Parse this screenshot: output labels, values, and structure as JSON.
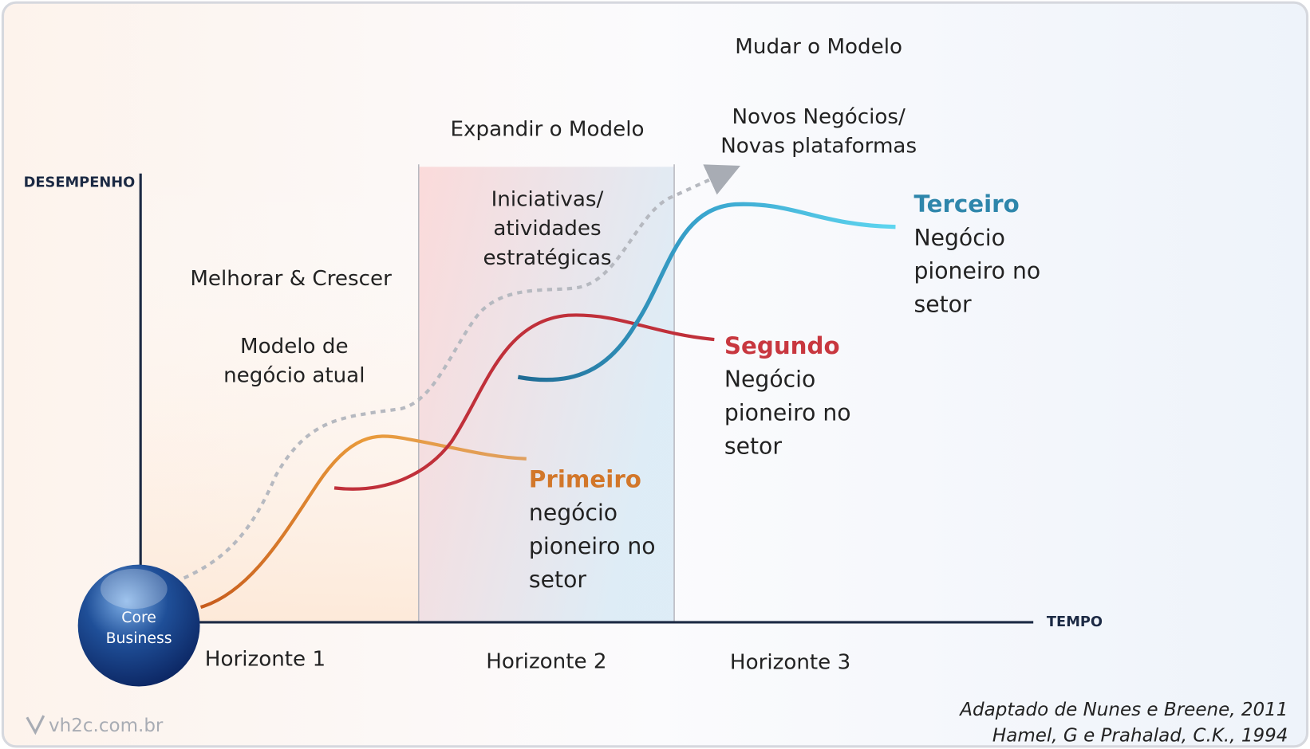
{
  "axes": {
    "y_label": "DESEMPENHO",
    "x_label": "TEMPO"
  },
  "horizons": [
    {
      "name": "Horizonte 1",
      "title": "Melhorar & Crescer",
      "subtitle": [
        "Modelo de",
        "negócio atual"
      ]
    },
    {
      "name": "Horizonte 2",
      "title": "Expandir o Modelo",
      "subtitle": [
        "Iniciativas/",
        "atividades",
        "estratégicas"
      ]
    },
    {
      "name": "Horizonte 3",
      "title": "Mudar o Modelo",
      "subtitle": [
        "Novos Negócios/",
        "Novas plataformas"
      ]
    }
  ],
  "curves": [
    {
      "label": "Primeiro",
      "description": [
        "negócio",
        "pioneiro no",
        "setor"
      ]
    },
    {
      "label": "Segundo",
      "description": [
        "Negócio",
        "pioneiro no",
        "setor"
      ]
    },
    {
      "label": "Terceiro",
      "description": [
        "Negócio",
        "pioneiro no",
        "setor"
      ]
    }
  ],
  "core": [
    "Core",
    "Business"
  ],
  "watermark": "vh2c.com.br",
  "sources": [
    "Adaptado de Nunes e Breene, 2011",
    "Hamel, G e Prahalad, C.K., 1994"
  ]
}
